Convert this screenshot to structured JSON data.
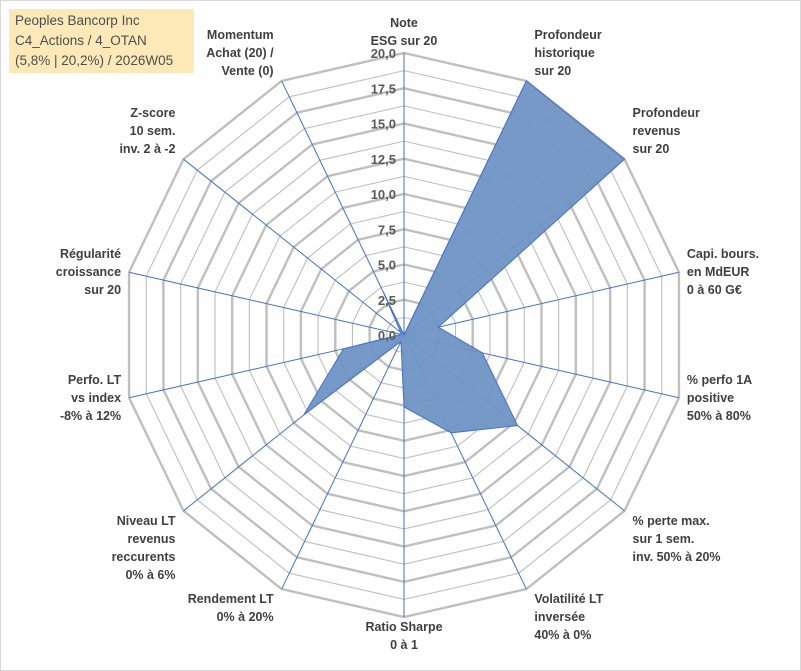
{
  "title_box": {
    "line1": "Peoples Bancorp Inc",
    "line2": "C4_Actions / 4_OTAN",
    "line3": "(5,8% | 20,2%) / 2026W05"
  },
  "chart_data": {
    "type": "radar",
    "rmax": 20,
    "tick_step": 2.5,
    "tick_labels": [
      "0,0",
      "2,5",
      "5,0",
      "7,5",
      "10,0",
      "12,5",
      "15,0",
      "17,5",
      "20,0"
    ],
    "grid_rings": 16,
    "axes": [
      {
        "label": [
          "Note",
          "ESG sur 20"
        ],
        "value": 0
      },
      {
        "label": [
          "Profondeur",
          "historique",
          "sur 20"
        ],
        "value": 20
      },
      {
        "label": [
          "Profondeur",
          "revenus",
          "sur 20"
        ],
        "value": 20
      },
      {
        "label": [
          "Capi. bours.",
          "en MdEUR",
          "0 à 60 G€"
        ],
        "value": 2.5
      },
      {
        "label": [
          "% perfo 1A",
          "positive",
          "50% à 80%"
        ],
        "value": 5.7
      },
      {
        "label": [
          "% perte max.",
          "sur 1 sem.",
          "inv. 50% à 20%"
        ],
        "value": 10.3
      },
      {
        "label": [
          "Volatilité LT",
          "inversée",
          "40% à 0%"
        ],
        "value": 7.7
      },
      {
        "label": [
          "Ratio Sharpe",
          "0 à 1"
        ],
        "value": 5.1
      },
      {
        "label": [
          "Rendement LT",
          "0% à 20%"
        ],
        "value": 0.5
      },
      {
        "label": [
          "Niveau LT",
          "revenus",
          "reccurents",
          "0% à 6%"
        ],
        "value": 9.1
      },
      {
        "label": [
          "Perfo. LT",
          "vs index",
          "-8% à 12%"
        ],
        "value": 4.4
      },
      {
        "label": [
          "Régularité",
          "croissance",
          "sur 20"
        ],
        "value": 0.2
      },
      {
        "label": [
          "Z-score",
          "10 sem.",
          "inv. 2 à -2"
        ],
        "value": 0.3
      },
      {
        "label": [
          "Momentum",
          "Achat (20) /",
          "Vente (0)"
        ],
        "value": 3.4
      }
    ],
    "colors": {
      "fill": "#7094c4",
      "stroke": "#4472c4",
      "spoke": "#4472c4",
      "grid": "#bfbfbf",
      "title_bg": "#fde9b7"
    }
  }
}
